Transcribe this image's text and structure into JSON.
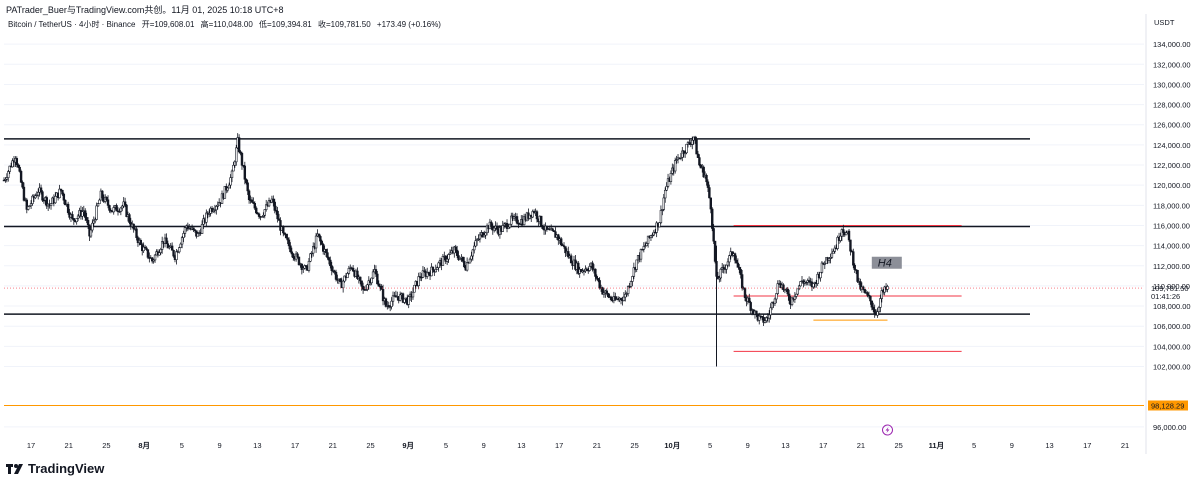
{
  "header": {
    "text": "PATrader_Buer与TradingView.com共创。11月 01, 2025 10:18 UTC+8"
  },
  "symbol": {
    "name": "Bitcoin / TetherUS · 4小时 · Binance",
    "open": "开=109,608.01",
    "high": "高=110,048.00",
    "low": "低=109,394.81",
    "close": "收=109,781.50",
    "change": "+173.49 (+0.16%)"
  },
  "brand": {
    "name": "TradingView"
  },
  "colors": {
    "up": "#089981",
    "candle": "#131722",
    "level": "#131722",
    "red": "#f23645",
    "orange": "#ff9800",
    "grid": "#f0f3fa",
    "label_bg": "#787b86"
  },
  "chart_data": {
    "type": "candlestick",
    "title": "Bitcoin / TetherUS · 4小时 · Binance",
    "currency_label": "USDT",
    "ylim": [
      95000,
      136000
    ],
    "y_ticks": [
      96000,
      102000,
      104000,
      106000,
      108000,
      110000,
      112000,
      114000,
      116000,
      118000,
      120000,
      122000,
      124000,
      126000,
      128000,
      130000,
      132000,
      134000
    ],
    "y_tick_labels": [
      "96,000.00",
      "102,000.00",
      "104,000.00",
      "106,000.00",
      "108,000.00",
      "110,000.00",
      "112,000.00",
      "114,000.00",
      "116,000.00",
      "118,000.00",
      "120,000.00",
      "122,000.00",
      "124,000.00",
      "126,000.00",
      "128,000.00",
      "130,000.00",
      "132,000.00",
      "134,000.00"
    ],
    "x_ticks": [
      "17",
      "21",
      "25",
      "8月",
      "5",
      "9",
      "13",
      "17",
      "21",
      "25",
      "9月",
      "5",
      "9",
      "13",
      "17",
      "21",
      "25",
      "10月",
      "5",
      "9",
      "13",
      "17",
      "21",
      "25",
      "11月",
      "5",
      "9",
      "13",
      "17",
      "21"
    ],
    "x_tick_bold": [
      "8月",
      "9月",
      "10月",
      "11月"
    ],
    "price_anchors": [
      [
        0,
        120500
      ],
      [
        2,
        123000
      ],
      [
        4,
        117500
      ],
      [
        6,
        119500
      ],
      [
        8,
        118000
      ],
      [
        10,
        119500
      ],
      [
        12,
        116500
      ],
      [
        14,
        117500
      ],
      [
        15,
        115000
      ],
      [
        17,
        119000
      ],
      [
        19,
        117500
      ],
      [
        21,
        118000
      ],
      [
        22,
        116500
      ],
      [
        24,
        114000
      ],
      [
        26,
        112500
      ],
      [
        28,
        114500
      ],
      [
        30,
        113000
      ],
      [
        32,
        116000
      ],
      [
        34,
        115000
      ],
      [
        36,
        117500
      ],
      [
        38,
        118500
      ],
      [
        40,
        121000
      ],
      [
        41,
        124300
      ],
      [
        42,
        121500
      ],
      [
        43,
        118500
      ],
      [
        45,
        117000
      ],
      [
        47,
        118500
      ],
      [
        49,
        115000
      ],
      [
        51,
        113000
      ],
      [
        53,
        111500
      ],
      [
        55,
        115000
      ],
      [
        57,
        112500
      ],
      [
        59,
        110000
      ],
      [
        61,
        112000
      ],
      [
        63,
        109500
      ],
      [
        65,
        111500
      ],
      [
        67,
        108000
      ],
      [
        69,
        109000
      ],
      [
        71,
        108500
      ],
      [
        73,
        111000
      ],
      [
        75,
        111500
      ],
      [
        77,
        112500
      ],
      [
        79,
        113500
      ],
      [
        81,
        112000
      ],
      [
        83,
        114500
      ],
      [
        85,
        116000
      ],
      [
        87,
        115500
      ],
      [
        89,
        116500
      ],
      [
        91,
        116500
      ],
      [
        93,
        117500
      ],
      [
        95,
        115500
      ],
      [
        97,
        115000
      ],
      [
        99,
        113000
      ],
      [
        101,
        111500
      ],
      [
        103,
        112000
      ],
      [
        105,
        109500
      ],
      [
        107,
        108500
      ],
      [
        109,
        109000
      ],
      [
        111,
        112500
      ],
      [
        113,
        114500
      ],
      [
        115,
        116500
      ],
      [
        116,
        119500
      ],
      [
        118,
        122500
      ],
      [
        120,
        124000
      ],
      [
        121,
        124800
      ],
      [
        122,
        122000
      ],
      [
        123,
        121000
      ],
      [
        124,
        118000
      ],
      [
        125,
        110500
      ],
      [
        126,
        111500
      ],
      [
        128,
        113500
      ],
      [
        130,
        109000
      ],
      [
        132,
        107000
      ],
      [
        133,
        106500
      ],
      [
        134,
        106800
      ],
      [
        136,
        110500
      ],
      [
        138,
        108500
      ],
      [
        140,
        110500
      ],
      [
        142,
        110000
      ],
      [
        144,
        112500
      ],
      [
        146,
        114000
      ],
      [
        147,
        115800
      ],
      [
        148,
        115000
      ],
      [
        150,
        110000
      ],
      [
        152,
        108500
      ],
      [
        153,
        107200
      ],
      [
        154,
        109200
      ],
      [
        155,
        109781.5
      ]
    ],
    "levels": [
      {
        "name": "resistance-top",
        "price": 124600,
        "x_start": 0,
        "x_end": 180,
        "color": "#131722"
      },
      {
        "name": "resistance-mid",
        "price": 115900,
        "x_start": 0,
        "x_end": 180,
        "color": "#131722"
      },
      {
        "name": "support",
        "price": 107200,
        "x_start": 0,
        "x_end": 180,
        "color": "#131722"
      },
      {
        "name": "red-top",
        "price": 116000,
        "x_start": 128,
        "x_end": 168,
        "color": "#f23645"
      },
      {
        "name": "red-mid",
        "price": 109000,
        "x_start": 128,
        "x_end": 168,
        "color": "#f23645"
      },
      {
        "name": "red-bottom",
        "price": 103500,
        "x_start": 128,
        "x_end": 168,
        "color": "#f23645"
      },
      {
        "name": "orange-short",
        "price": 106600,
        "x_start": 142,
        "x_end": 155,
        "color": "#ff9800"
      },
      {
        "name": "orange-long",
        "price": 98128.29,
        "x_start": 0,
        "x_end": 200,
        "color": "#ff9800"
      }
    ],
    "last_price": 109781.5,
    "last_price_label": "109,781.50",
    "countdown": "01:41:26",
    "orange_price_label": "98,128.29",
    "timeframe_tag": "H4",
    "x_domain": [
      0,
      200
    ]
  }
}
